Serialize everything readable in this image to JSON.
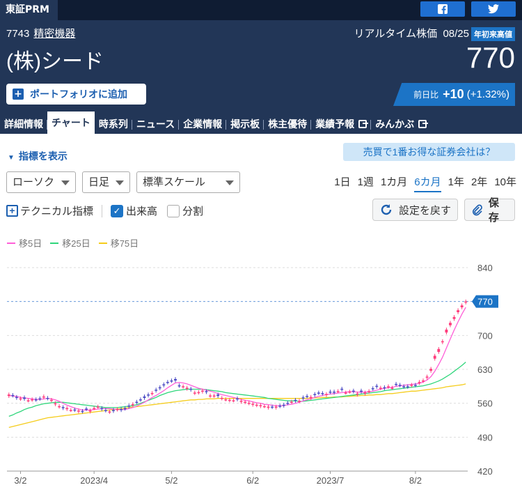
{
  "header": {
    "market": "東証PRM",
    "code": "7743",
    "industry": "精密機器",
    "realtime_label": "リアルタイム株価",
    "date": "08/25",
    "ytd_badge": "年初来高値",
    "company": "(株)シード",
    "price": "770",
    "portfolio_label": "ポートフォリオに追加",
    "change_label": "前日比",
    "change_value": "+10",
    "change_pct": "(+1.32%)"
  },
  "icons": {
    "facebook": "facebook-icon",
    "twitter": "twitter-icon"
  },
  "tabs": [
    {
      "label": "詳細情報"
    },
    {
      "label": "チャート",
      "active": true
    },
    {
      "label": "時系列"
    },
    {
      "label": "ニュース"
    },
    {
      "label": "企業情報"
    },
    {
      "label": "掲示板"
    },
    {
      "label": "株主優待"
    },
    {
      "label": "業績予報"
    },
    {
      "label": "みんかぶ"
    }
  ],
  "controls": {
    "show_indicators": "指標を表示",
    "promo": "売買で1番お得な証券会社は？",
    "chart_type": "ローソク",
    "interval": "日足",
    "scale": "標準スケール",
    "periods": [
      "1日",
      "1週",
      "1カ月",
      "6カ月",
      "1年",
      "2年",
      "10年"
    ],
    "active_period": "6カ月",
    "technical": "テクニカル指標",
    "volume": "出来高",
    "split": "分割",
    "reset": "設定を戻す",
    "save": "保存"
  },
  "colors": {
    "up": "#ff3c7c",
    "down": "#4b4bc4",
    "ma5": "#ff5fd8",
    "ma25": "#2fd67b",
    "ma75": "#f5cc1a",
    "accent": "#1c74c6",
    "header": "#223657"
  },
  "chart_data": {
    "type": "candlestick",
    "legend": [
      "移5日",
      "移25日",
      "移75日"
    ],
    "ylim": [
      420,
      840
    ],
    "yticks": [
      840,
      770,
      700,
      630,
      560,
      490,
      420
    ],
    "last_price": "770",
    "x_labels": [
      {
        "label": "3/2",
        "i": 3
      },
      {
        "label": "2023/4",
        "i": 22
      },
      {
        "label": "5/2",
        "i": 42
      },
      {
        "label": "6/2",
        "i": 63
      },
      {
        "label": "2023/7",
        "i": 83
      },
      {
        "label": "8/2",
        "i": 105
      }
    ],
    "close": [
      578,
      576,
      571,
      570,
      569,
      566,
      568,
      567,
      569,
      574,
      570,
      567,
      560,
      554,
      550,
      550,
      546,
      546,
      545,
      543,
      548,
      545,
      550,
      553,
      548,
      545,
      543,
      544,
      548,
      546,
      549,
      553,
      558,
      562,
      567,
      571,
      576,
      581,
      586,
      591,
      597,
      603,
      606,
      607,
      596,
      595,
      592,
      588,
      582,
      583,
      586,
      583,
      576,
      576,
      575,
      571,
      568,
      567,
      566,
      568,
      565,
      563,
      561,
      559,
      557,
      556,
      554,
      553,
      552,
      553,
      554,
      555,
      560,
      563,
      565,
      565,
      570,
      574,
      573,
      577,
      581,
      580,
      579,
      583,
      582,
      585,
      588,
      582,
      584,
      584,
      580,
      584,
      582,
      585,
      590,
      594,
      592,
      591,
      595,
      592,
      599,
      597,
      594,
      594,
      598,
      597,
      604,
      607,
      615,
      631,
      658,
      672,
      688,
      712,
      726,
      738,
      752,
      762,
      770
    ],
    "open": [
      575,
      577,
      573,
      569,
      572,
      566,
      567,
      568,
      570,
      572,
      571,
      566,
      558,
      553,
      552,
      548,
      546,
      547,
      543,
      544,
      549,
      543,
      550,
      552,
      550,
      546,
      542,
      546,
      547,
      548,
      550,
      555,
      557,
      563,
      568,
      574,
      578,
      580,
      588,
      593,
      599,
      604,
      607,
      610,
      597,
      594,
      590,
      590,
      581,
      582,
      584,
      585,
      575,
      575,
      578,
      570,
      568,
      566,
      566,
      570,
      563,
      562,
      560,
      557,
      556,
      554,
      554,
      551,
      553,
      551,
      555,
      557,
      561,
      563,
      567,
      564,
      572,
      575,
      571,
      579,
      582,
      581,
      577,
      584,
      584,
      585,
      590,
      582,
      584,
      586,
      578,
      586,
      580,
      584,
      591,
      596,
      591,
      593,
      594,
      592,
      600,
      598,
      595,
      595,
      597,
      598,
      602,
      606,
      613,
      627,
      652,
      666,
      686,
      706,
      721,
      734,
      748,
      758,
      768
    ],
    "ma5": [
      576,
      575,
      574,
      572,
      571,
      570,
      569,
      568,
      568,
      569,
      570,
      569,
      567,
      564,
      560,
      556,
      553,
      550,
      548,
      546,
      546,
      546,
      547,
      548,
      549,
      549,
      549,
      548,
      547,
      547,
      547,
      549,
      551,
      554,
      558,
      562,
      567,
      572,
      576,
      581,
      586,
      592,
      597,
      602,
      603,
      602,
      600,
      597,
      594,
      591,
      589,
      587,
      585,
      583,
      580,
      578,
      576,
      574,
      572,
      570,
      568,
      566,
      565,
      563,
      561,
      560,
      558,
      557,
      556,
      555,
      555,
      555,
      557,
      558,
      560,
      562,
      565,
      567,
      569,
      572,
      574,
      576,
      578,
      579,
      580,
      581,
      582,
      583,
      584,
      584,
      583,
      583,
      583,
      584,
      585,
      587,
      589,
      591,
      592,
      593,
      595,
      596,
      597,
      598,
      599,
      600,
      601,
      604,
      608,
      615,
      626,
      640,
      655,
      674,
      693,
      711,
      728,
      744,
      758
    ],
    "ma25": [
      533,
      536,
      540,
      543,
      547,
      550,
      552,
      555,
      557,
      559,
      560,
      561,
      562,
      562,
      562,
      561,
      560,
      559,
      558,
      557,
      556,
      555,
      554,
      553,
      552,
      551,
      551,
      551,
      551,
      552,
      553,
      554,
      555,
      557,
      560,
      563,
      566,
      569,
      572,
      576,
      579,
      582,
      584,
      586,
      587,
      588,
      589,
      589,
      589,
      589,
      589,
      588,
      587,
      586,
      585,
      584,
      582,
      581,
      580,
      579,
      578,
      577,
      576,
      575,
      574,
      573,
      572,
      570,
      569,
      568,
      567,
      566,
      565,
      565,
      565,
      564,
      564,
      565,
      566,
      567,
      568,
      569,
      570,
      571,
      572,
      573,
      574,
      575,
      576,
      577,
      578,
      579,
      580,
      581,
      582,
      583,
      584,
      586,
      587,
      588,
      589,
      590,
      591,
      592,
      593,
      594,
      595,
      596,
      598,
      600,
      603,
      606,
      610,
      615,
      620,
      626,
      632,
      638,
      645
    ],
    "ma75": [
      510,
      512,
      514,
      516,
      518,
      520,
      522,
      524,
      526,
      528,
      530,
      531,
      532,
      533,
      534,
      535,
      536,
      537,
      538,
      539,
      540,
      541,
      542,
      543,
      544,
      545,
      546,
      547,
      548,
      549,
      550,
      551,
      552,
      553,
      554,
      555,
      556,
      557,
      558,
      559,
      560,
      561,
      562,
      563,
      564,
      565,
      566,
      567,
      567,
      568,
      568,
      569,
      569,
      569,
      570,
      570,
      570,
      570,
      570,
      570,
      570,
      570,
      570,
      570,
      570,
      570,
      570,
      570,
      570,
      570,
      570,
      570,
      570,
      570,
      570,
      570,
      570,
      570,
      571,
      571,
      571,
      572,
      572,
      572,
      573,
      573,
      573,
      574,
      574,
      575,
      575,
      576,
      576,
      577,
      577,
      578,
      578,
      579,
      580,
      580,
      581,
      582,
      583,
      584,
      585,
      585,
      586,
      587,
      588,
      589,
      590,
      591,
      592,
      594,
      595,
      596,
      597,
      598,
      600
    ]
  }
}
